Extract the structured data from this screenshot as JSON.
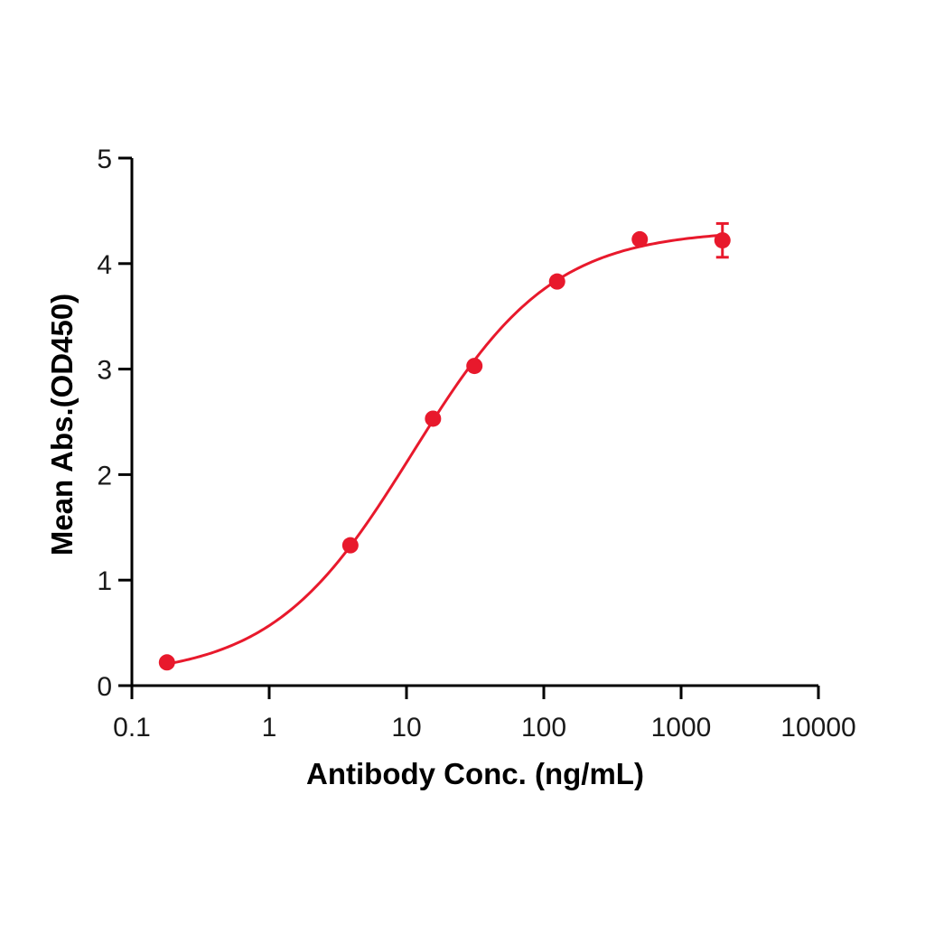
{
  "chart_data": {
    "type": "scatter",
    "title": "",
    "xlabel": "Antibody Conc. (ng/mL)",
    "ylabel": "Mean Abs.(OD450)",
    "xscale": "log",
    "xlim": [
      0.1,
      10000
    ],
    "ylim": [
      0,
      5
    ],
    "x_ticks": [
      0.1,
      1,
      10,
      100,
      1000,
      10000
    ],
    "x_tick_labels": [
      "0.1",
      "1",
      "10",
      "100",
      "1000",
      "10000"
    ],
    "y_ticks": [
      0,
      1,
      2,
      3,
      4,
      5
    ],
    "y_tick_labels": [
      "0",
      "1",
      "2",
      "3",
      "4",
      "5"
    ],
    "grid": false,
    "legend": null,
    "series": [
      {
        "name": "Mean Abs.",
        "color": "#E8192C",
        "x": [
          0.18,
          3.9,
          15.6,
          31.25,
          125,
          500,
          2000
        ],
        "y": [
          0.22,
          1.33,
          2.53,
          3.03,
          3.83,
          4.23,
          4.22
        ],
        "error": [
          0,
          0,
          0,
          0,
          0,
          0,
          0.16
        ]
      }
    ],
    "fit": {
      "model": "4PL",
      "bottom": 0.08,
      "top": 4.32,
      "ec50": 11,
      "hill": 0.85,
      "x_range": [
        0.18,
        2000
      ],
      "color": "#E8192C"
    }
  }
}
